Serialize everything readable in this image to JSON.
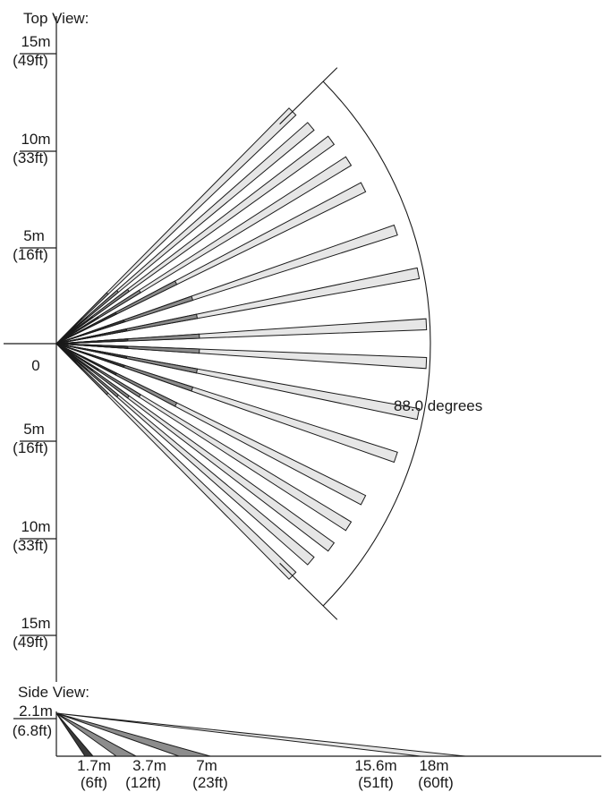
{
  "top_view": {
    "title": "Top View:",
    "zero_label": "0",
    "angle_label": "88.0 degrees",
    "ticks_up": [
      {
        "m": "5m",
        "ft": "(16ft)"
      },
      {
        "m": "10m",
        "ft": "(33ft)"
      },
      {
        "m": "15m",
        "ft": "(49ft)"
      }
    ],
    "ticks_down": [
      {
        "m": "5m",
        "ft": "(16ft)"
      },
      {
        "m": "10m",
        "ft": "(33ft)"
      },
      {
        "m": "15m",
        "ft": "(49ft)"
      }
    ]
  },
  "side_view": {
    "title": "Side View:",
    "height_m": "2.1m",
    "height_ft": "(6.8ft)",
    "distances": [
      {
        "m": "1.7m",
        "ft": "(6ft)"
      },
      {
        "m": "3.7m",
        "ft": "(12ft)"
      },
      {
        "m": "7m",
        "ft": "(23ft)"
      },
      {
        "m": "15.6m",
        "ft": "(51ft)"
      },
      {
        "m": "18m",
        "ft": "(60ft)"
      }
    ]
  },
  "colors": {
    "line": "#1a1a1a",
    "beam_light": "#e6e6e6",
    "beam_mid": "#8c8c8c",
    "beam_dark": "#3a3a3a"
  }
}
